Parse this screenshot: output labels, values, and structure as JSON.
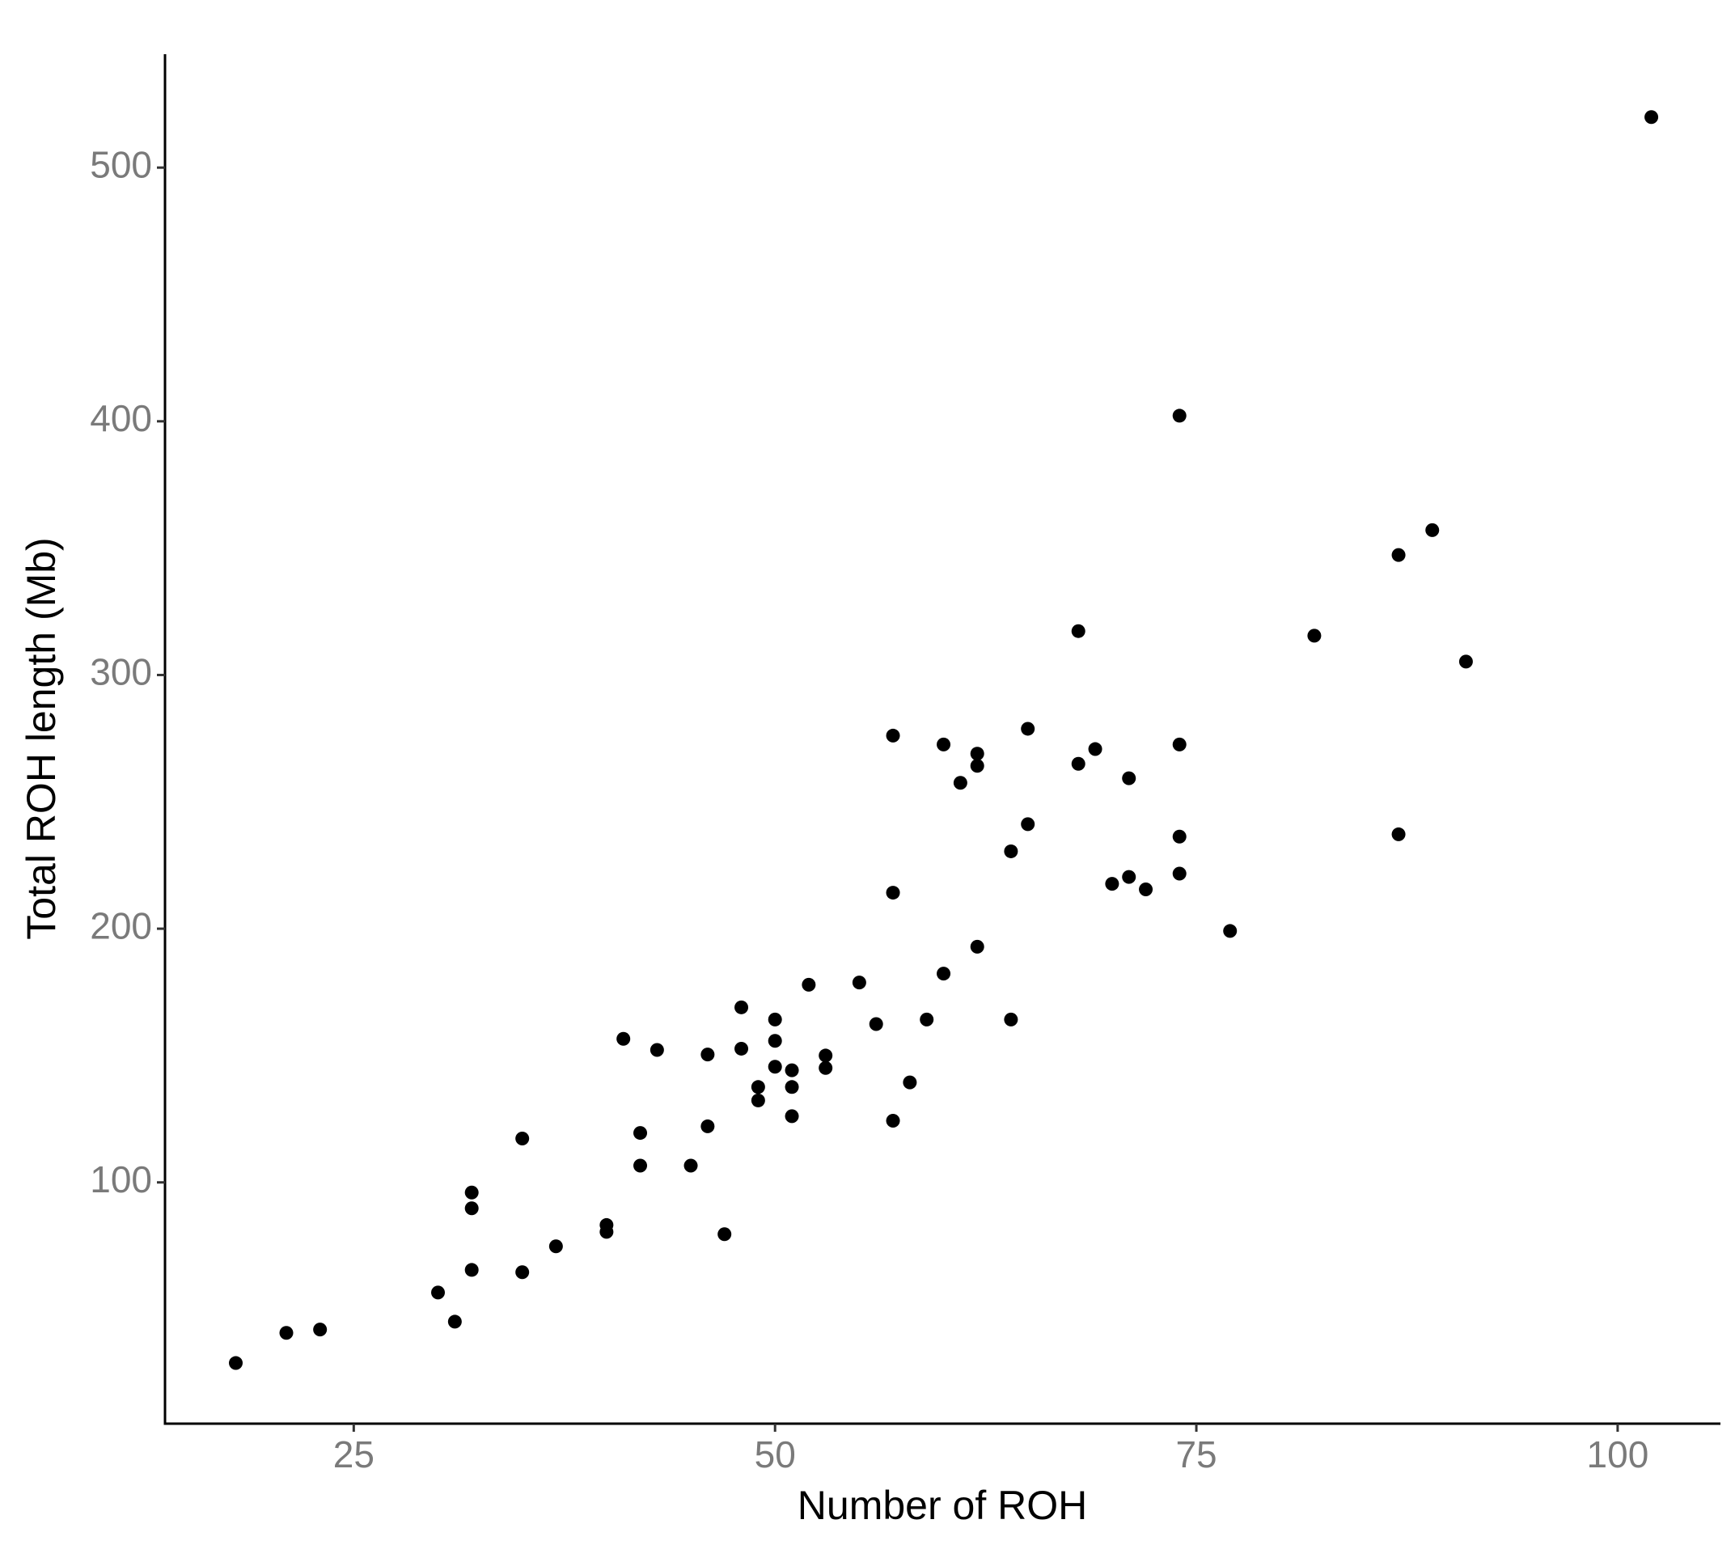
{
  "chart_data": {
    "type": "scatter",
    "x_label": "Number of ROH",
    "y_label": "Total ROH length (Mb)",
    "color": "#000000",
    "xlim": [
      13.8,
      106.1
    ],
    "xticks": [
      25,
      50,
      75,
      100
    ],
    "ylim": [
      4.9,
      544.7
    ],
    "yticks": [
      100,
      200,
      300,
      400,
      500
    ],
    "grid": false,
    "x": [
      18,
      21,
      23,
      30,
      31,
      32,
      32,
      32,
      35,
      35,
      37,
      40,
      40,
      41,
      42,
      42,
      43,
      45,
      46,
      46,
      47,
      48,
      48,
      49,
      49,
      50,
      50,
      50,
      51,
      51,
      51,
      52,
      53,
      53,
      55,
      56,
      57,
      57,
      57,
      58,
      59,
      60,
      60,
      61,
      62,
      62,
      62,
      64,
      64,
      65,
      65,
      68,
      68,
      69,
      70,
      71,
      71,
      72,
      74,
      74,
      74,
      74,
      77,
      82,
      87,
      87,
      89,
      91,
      102
    ],
    "values": [
      28.8,
      40.7,
      42,
      56.6,
      45.1,
      96,
      89.8,
      65.5,
      117.3,
      64.6,
      74.8,
      83.2,
      80.5,
      156.6,
      119.5,
      106.6,
      152.2,
      106.6,
      150.4,
      122.1,
      79.6,
      169,
      152.7,
      137.6,
      132.3,
      164.2,
      155.8,
      145.6,
      144.2,
      137.6,
      126.1,
      177.9,
      150,
      145.1,
      178.8,
      162.4,
      276.1,
      214.2,
      124.3,
      139.4,
      164.2,
      272.6,
      182.3,
      257.5,
      269,
      264.2,
      192.9,
      230.5,
      164.2,
      278.8,
      241.2,
      317.3,
      265,
      270.8,
      217.7,
      259.3,
      220.4,
      215.5,
      402.2,
      272.6,
      236.3,
      221.7,
      199.1,
      315.5,
      347.3,
      237.2,
      357.1,
      305.3,
      519.9
    ]
  }
}
